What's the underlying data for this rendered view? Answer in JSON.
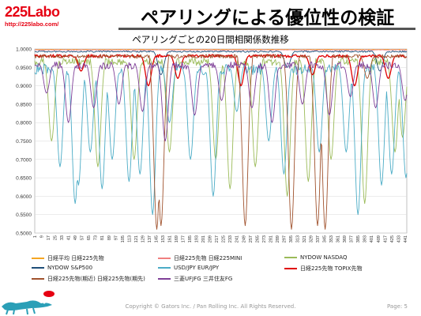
{
  "header": {
    "logo": "225Labo",
    "url": "http://225labo.com/",
    "title": "ペアリングによる優位性の検証"
  },
  "chart_data": {
    "type": "line",
    "title": "ペアリングごとの20日間相関係数推移",
    "ylim": [
      0.5,
      1.0
    ],
    "yticks": [
      "1.0000",
      "0.9500",
      "0.9000",
      "0.8500",
      "0.8000",
      "0.7500",
      "0.7000",
      "0.6500",
      "0.6000",
      "0.5500",
      "0.5000"
    ],
    "xticks": [
      "1",
      "9",
      "17",
      "25",
      "33",
      "41",
      "49",
      "57",
      "65",
      "73",
      "81",
      "89",
      "97",
      "105",
      "113",
      "121",
      "129",
      "137",
      "145",
      "153",
      "161",
      "169",
      "177",
      "185",
      "193",
      "201",
      "209",
      "217",
      "225",
      "233",
      "241",
      "249",
      "257",
      "265",
      "273",
      "281",
      "289",
      "297",
      "305",
      "313",
      "321",
      "329",
      "337",
      "345",
      "353",
      "361",
      "369",
      "377",
      "385",
      "393",
      "401",
      "409",
      "417",
      "425",
      "433",
      "441"
    ],
    "x_count": 443,
    "grid": true,
    "series": [
      {
        "name": "日経平均 日経225先物",
        "color": "#f5a623",
        "base": 0.999,
        "noise": 0.001,
        "dips": []
      },
      {
        "name": "日経225先物 日経225MINI",
        "color": "#f08080",
        "base": 0.998,
        "noise": 0.001,
        "dips": []
      },
      {
        "name": "NYDOW NASDAQ",
        "color": "#9bbb59",
        "base": 0.975,
        "noise": 0.02,
        "dips": [
          [
            20,
            0.75
          ],
          [
            75,
            0.68
          ],
          [
            118,
            0.7
          ],
          [
            160,
            0.72
          ],
          [
            215,
            0.7
          ],
          [
            232,
            0.62
          ],
          [
            262,
            0.68
          ],
          [
            300,
            0.6
          ],
          [
            325,
            0.64
          ],
          [
            352,
            0.7
          ],
          [
            392,
            0.58
          ],
          [
            428,
            0.72
          ],
          [
            437,
            0.76
          ]
        ]
      },
      {
        "name": "NYDOW S&P500",
        "color": "#1f4e79",
        "base": 0.995,
        "noise": 0.004,
        "dips": [
          [
            150,
            0.93
          ],
          [
            300,
            0.95
          ],
          [
            410,
            0.94
          ]
        ]
      },
      {
        "name": "USD/JPY EUR/JPY",
        "color": "#4bacc6",
        "base": 0.96,
        "noise": 0.03,
        "dips": [
          [
            30,
            0.68
          ],
          [
            48,
            0.58
          ],
          [
            52,
            0.63
          ],
          [
            66,
            0.72
          ],
          [
            80,
            0.62
          ],
          [
            92,
            0.7
          ],
          [
            112,
            0.64
          ],
          [
            125,
            0.66
          ],
          [
            140,
            0.55
          ],
          [
            160,
            0.8
          ],
          [
            185,
            0.7
          ],
          [
            212,
            0.6
          ],
          [
            240,
            0.83
          ],
          [
            278,
            0.75
          ],
          [
            296,
            0.66
          ],
          [
            338,
            0.72
          ],
          [
            370,
            0.72
          ],
          [
            384,
            0.55
          ],
          [
            412,
            0.63
          ],
          [
            424,
            0.66
          ],
          [
            441,
            0.65
          ]
        ]
      },
      {
        "name": "日経225先物 TOPIX先物",
        "color": "#e00000",
        "base": 0.985,
        "noise": 0.008,
        "dips": [
          [
            55,
            0.94
          ],
          [
            135,
            0.9
          ],
          [
            170,
            0.92
          ],
          [
            245,
            0.9
          ],
          [
            330,
            0.93
          ],
          [
            380,
            0.9
          ],
          [
            420,
            0.92
          ]
        ]
      },
      {
        "name": "日経225先物(期近) 日経225先物(期先)",
        "color": "#a0522d",
        "base": 0.985,
        "noise": 0.01,
        "dips": [
          [
            145,
            0.51
          ],
          [
            150,
            0.52
          ],
          [
            250,
            0.52
          ],
          [
            305,
            0.51
          ],
          [
            336,
            0.52
          ],
          [
            345,
            0.51
          ],
          [
            395,
            0.92
          ]
        ]
      },
      {
        "name": "三菱UFJFG 三井住友FG",
        "color": "#7f3f98",
        "base": 0.965,
        "noise": 0.02,
        "dips": [
          [
            14,
            0.88
          ],
          [
            40,
            0.8
          ],
          [
            70,
            0.84
          ],
          [
            100,
            0.85
          ],
          [
            128,
            0.83
          ],
          [
            155,
            0.75
          ],
          [
            190,
            0.82
          ],
          [
            222,
            0.86
          ],
          [
            258,
            0.84
          ],
          [
            282,
            0.8
          ],
          [
            318,
            0.85
          ],
          [
            350,
            0.82
          ],
          [
            375,
            0.87
          ],
          [
            405,
            0.84
          ],
          [
            440,
            0.86
          ]
        ]
      }
    ]
  },
  "footer": {
    "copyright": "Copyright © Gators Inc. / Pan Rolling Inc. All Rights Reserved.",
    "page": "Page: 5"
  }
}
